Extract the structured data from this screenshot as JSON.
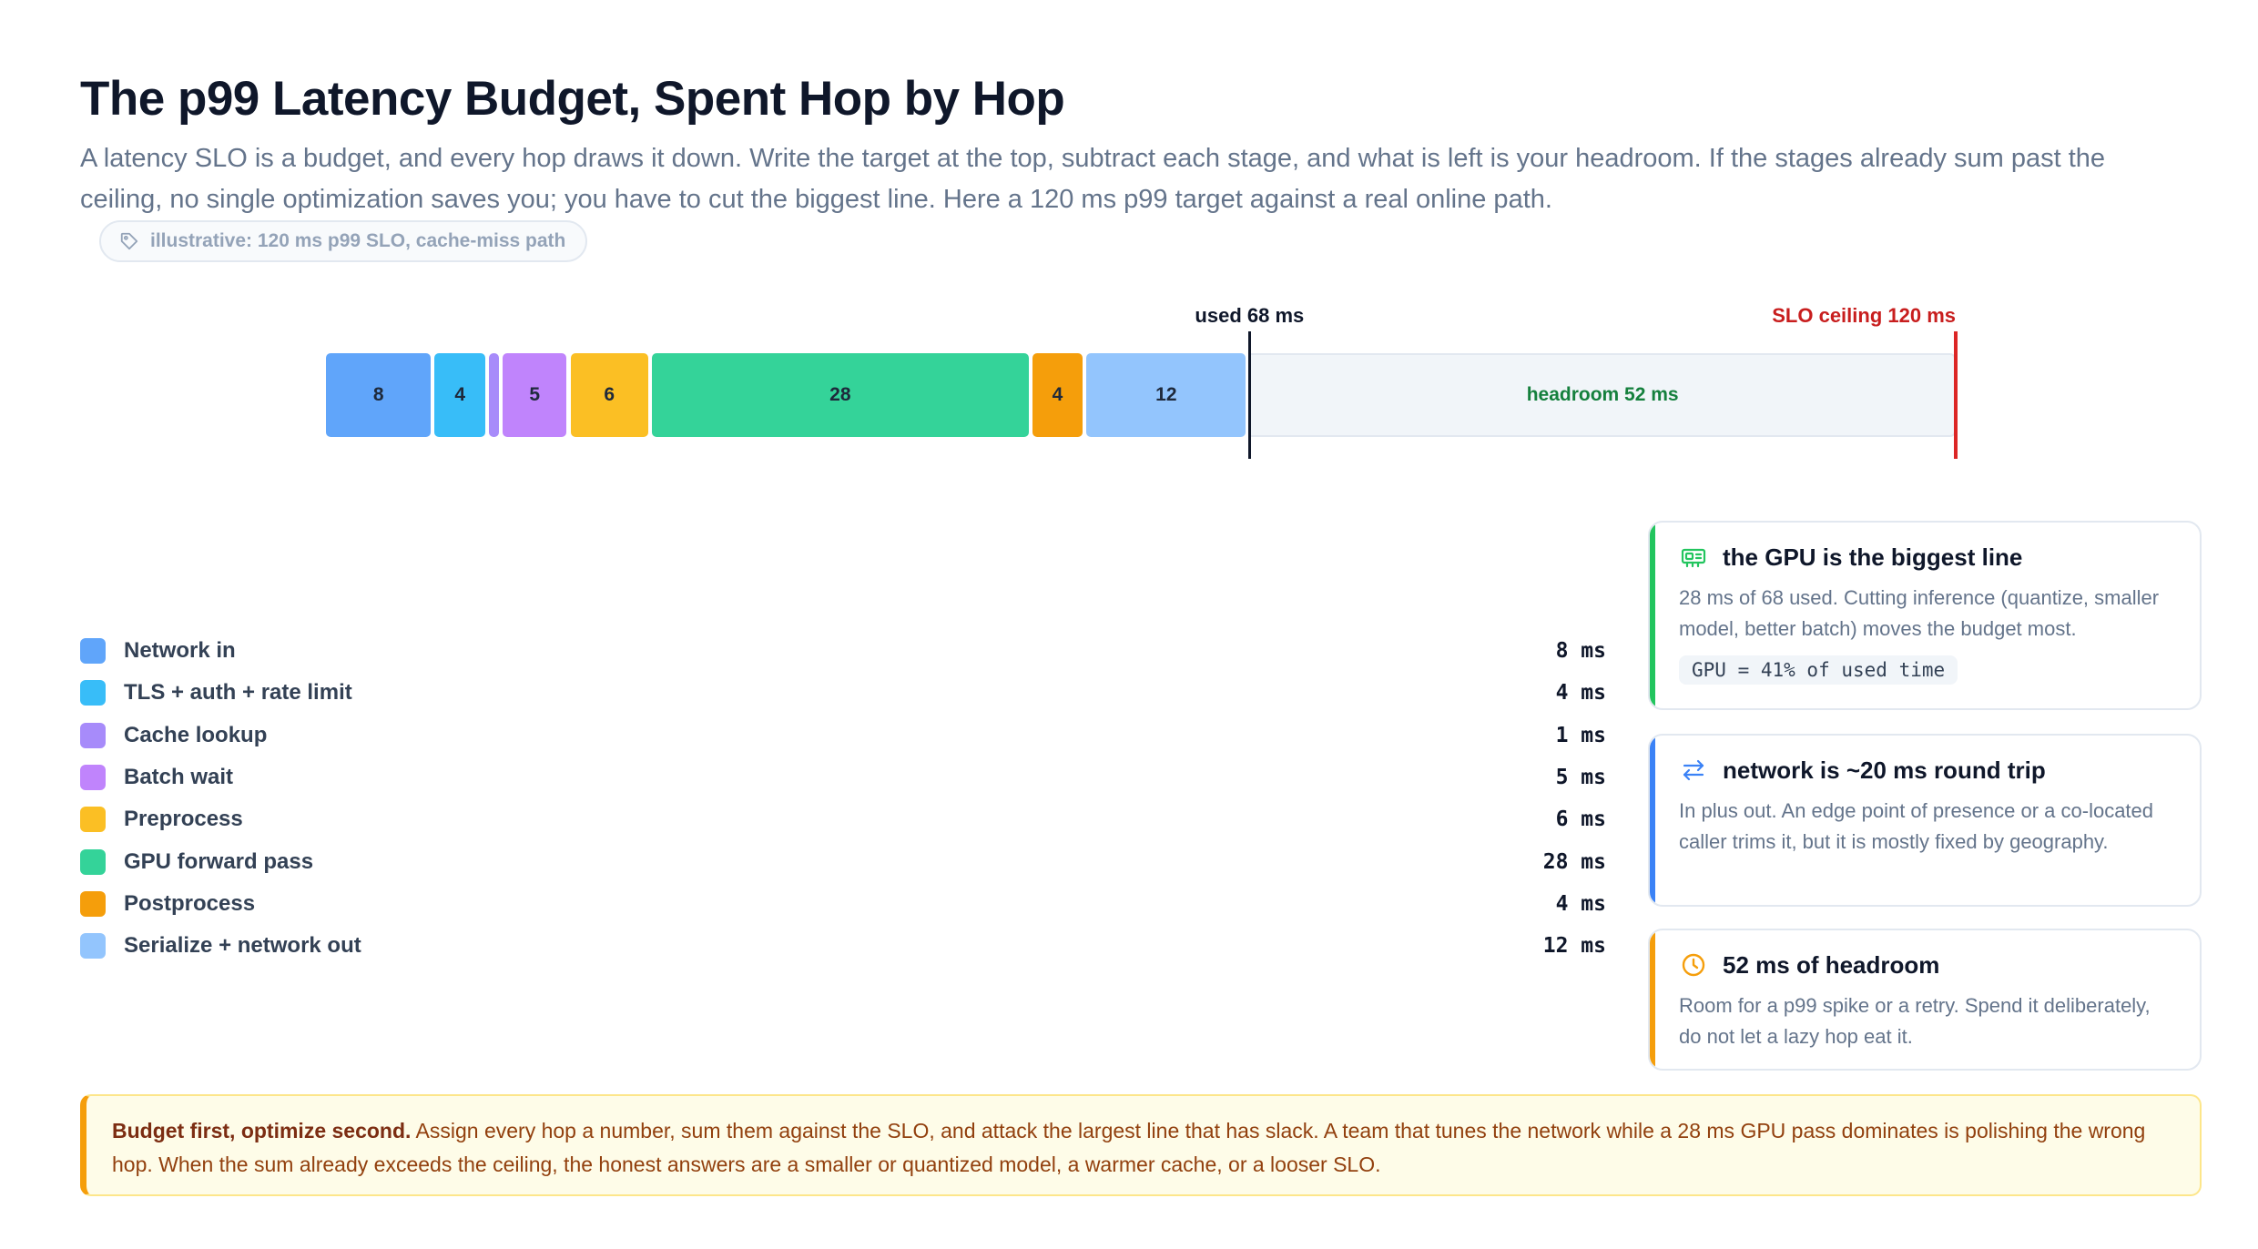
{
  "header": {
    "title": "The p99 Latency Budget, Spent Hop by Hop",
    "subtitle": "A latency SLO is a budget, and every hop draws it down. Write the target at the top, subtract each stage, and what is left is your headroom. If the stages already sum past the ceiling, no single optimization saves you; you have to cut the biggest line. Here a 120 ms p99 target against a real online path.",
    "badge": "illustrative: 120 ms p99 SLO, cache-miss path",
    "badge_icon": "tag-icon"
  },
  "chart_data": {
    "type": "bar",
    "orientation": "horizontal-stacked",
    "unit": "ms",
    "slo_ms": 120,
    "used_ms": 68,
    "headroom_ms": 52,
    "used_label": "used 68 ms",
    "slo_label": "SLO ceiling 120 ms",
    "headroom_label": "headroom 52 ms",
    "categories": [
      "Network in",
      "TLS + auth + rate limit",
      "Cache lookup",
      "Batch wait",
      "Preprocess",
      "GPU forward pass",
      "Postprocess",
      "Serialize + network out"
    ],
    "values": [
      8,
      4,
      1,
      5,
      6,
      28,
      4,
      12
    ],
    "segment_labels": [
      "8",
      "4",
      "",
      "5",
      "6",
      "28",
      "4",
      "12"
    ],
    "colors": [
      "#60a5fa",
      "#38bdf8",
      "#a78bfa",
      "#c084fc",
      "#fbbf24",
      "#34d399",
      "#f59e0b",
      "#93c5fd"
    ],
    "headroom_color": "#f1f5f9",
    "slo_color": "#dc2626"
  },
  "legend": {
    "items": [
      {
        "label": "Network in",
        "value": " 8 ms",
        "color": "#60a5fa"
      },
      {
        "label": "TLS + auth + rate limit",
        "value": " 4 ms",
        "color": "#38bdf8"
      },
      {
        "label": "Cache lookup",
        "value": " 1 ms",
        "color": "#a78bfa"
      },
      {
        "label": "Batch wait",
        "value": " 5 ms",
        "color": "#c084fc"
      },
      {
        "label": "Preprocess",
        "value": " 6 ms",
        "color": "#fbbf24"
      },
      {
        "label": "GPU forward pass",
        "value": "28 ms",
        "color": "#34d399"
      },
      {
        "label": "Postprocess",
        "value": " 4 ms",
        "color": "#f59e0b"
      },
      {
        "label": "Serialize + network out",
        "value": "12 ms",
        "color": "#93c5fd"
      }
    ]
  },
  "cards": [
    {
      "icon": "gpu-icon",
      "title": "the GPU is the biggest line",
      "body": "28 ms of 68 used. Cutting inference (quantize, smaller model, better batch) moves the budget most.",
      "code": "GPU = 41% of used time",
      "accent": "#22c55e"
    },
    {
      "icon": "arrows-exchange-icon",
      "title": "network is ~20 ms round trip",
      "body": "In plus out. An edge point of presence or a co-located caller trims it, but it is mostly fixed by geography.",
      "accent": "#3b82f6"
    },
    {
      "icon": "clock-icon",
      "title": "52 ms of headroom",
      "body": "Room for a p99 spike or a retry. Spend it deliberately, do not let a lazy hop eat it.",
      "accent": "#f59e0b"
    }
  ],
  "callout": {
    "lead": "Budget first, optimize second.",
    "text": " Assign every hop a number, sum them against the SLO, and attack the largest line that has slack. A team that tunes the network while a 28 ms GPU pass dominates is polishing the wrong hop. When the sum already exceeds the ceiling, the honest answers are a smaller or quantized model, a warmer cache, or a looser SLO."
  }
}
